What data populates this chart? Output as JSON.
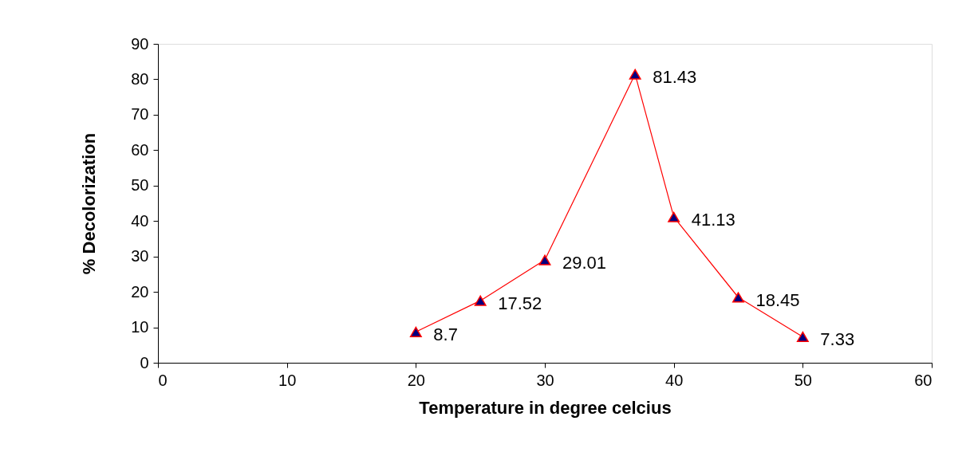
{
  "chart_data": {
    "type": "line",
    "xlabel": "Temperature in degree celcius",
    "ylabel": "% Decolorization",
    "x": [
      20,
      25,
      30,
      37,
      40,
      45,
      50
    ],
    "series": [
      {
        "color": "#ff0000",
        "values": [
          8.7,
          17.52,
          29.01,
          81.43,
          41.13,
          18.45,
          7.33
        ]
      }
    ],
    "xlim": [
      0,
      60
    ],
    "xticks": [
      0,
      10,
      20,
      30,
      40,
      50,
      60
    ],
    "ylim": [
      0,
      90
    ],
    "yticks": [
      0,
      10,
      20,
      30,
      40,
      50,
      60,
      70,
      80,
      90
    ],
    "grid": false,
    "marker": "triangle",
    "line_style": "solid",
    "data_labels": true
  }
}
